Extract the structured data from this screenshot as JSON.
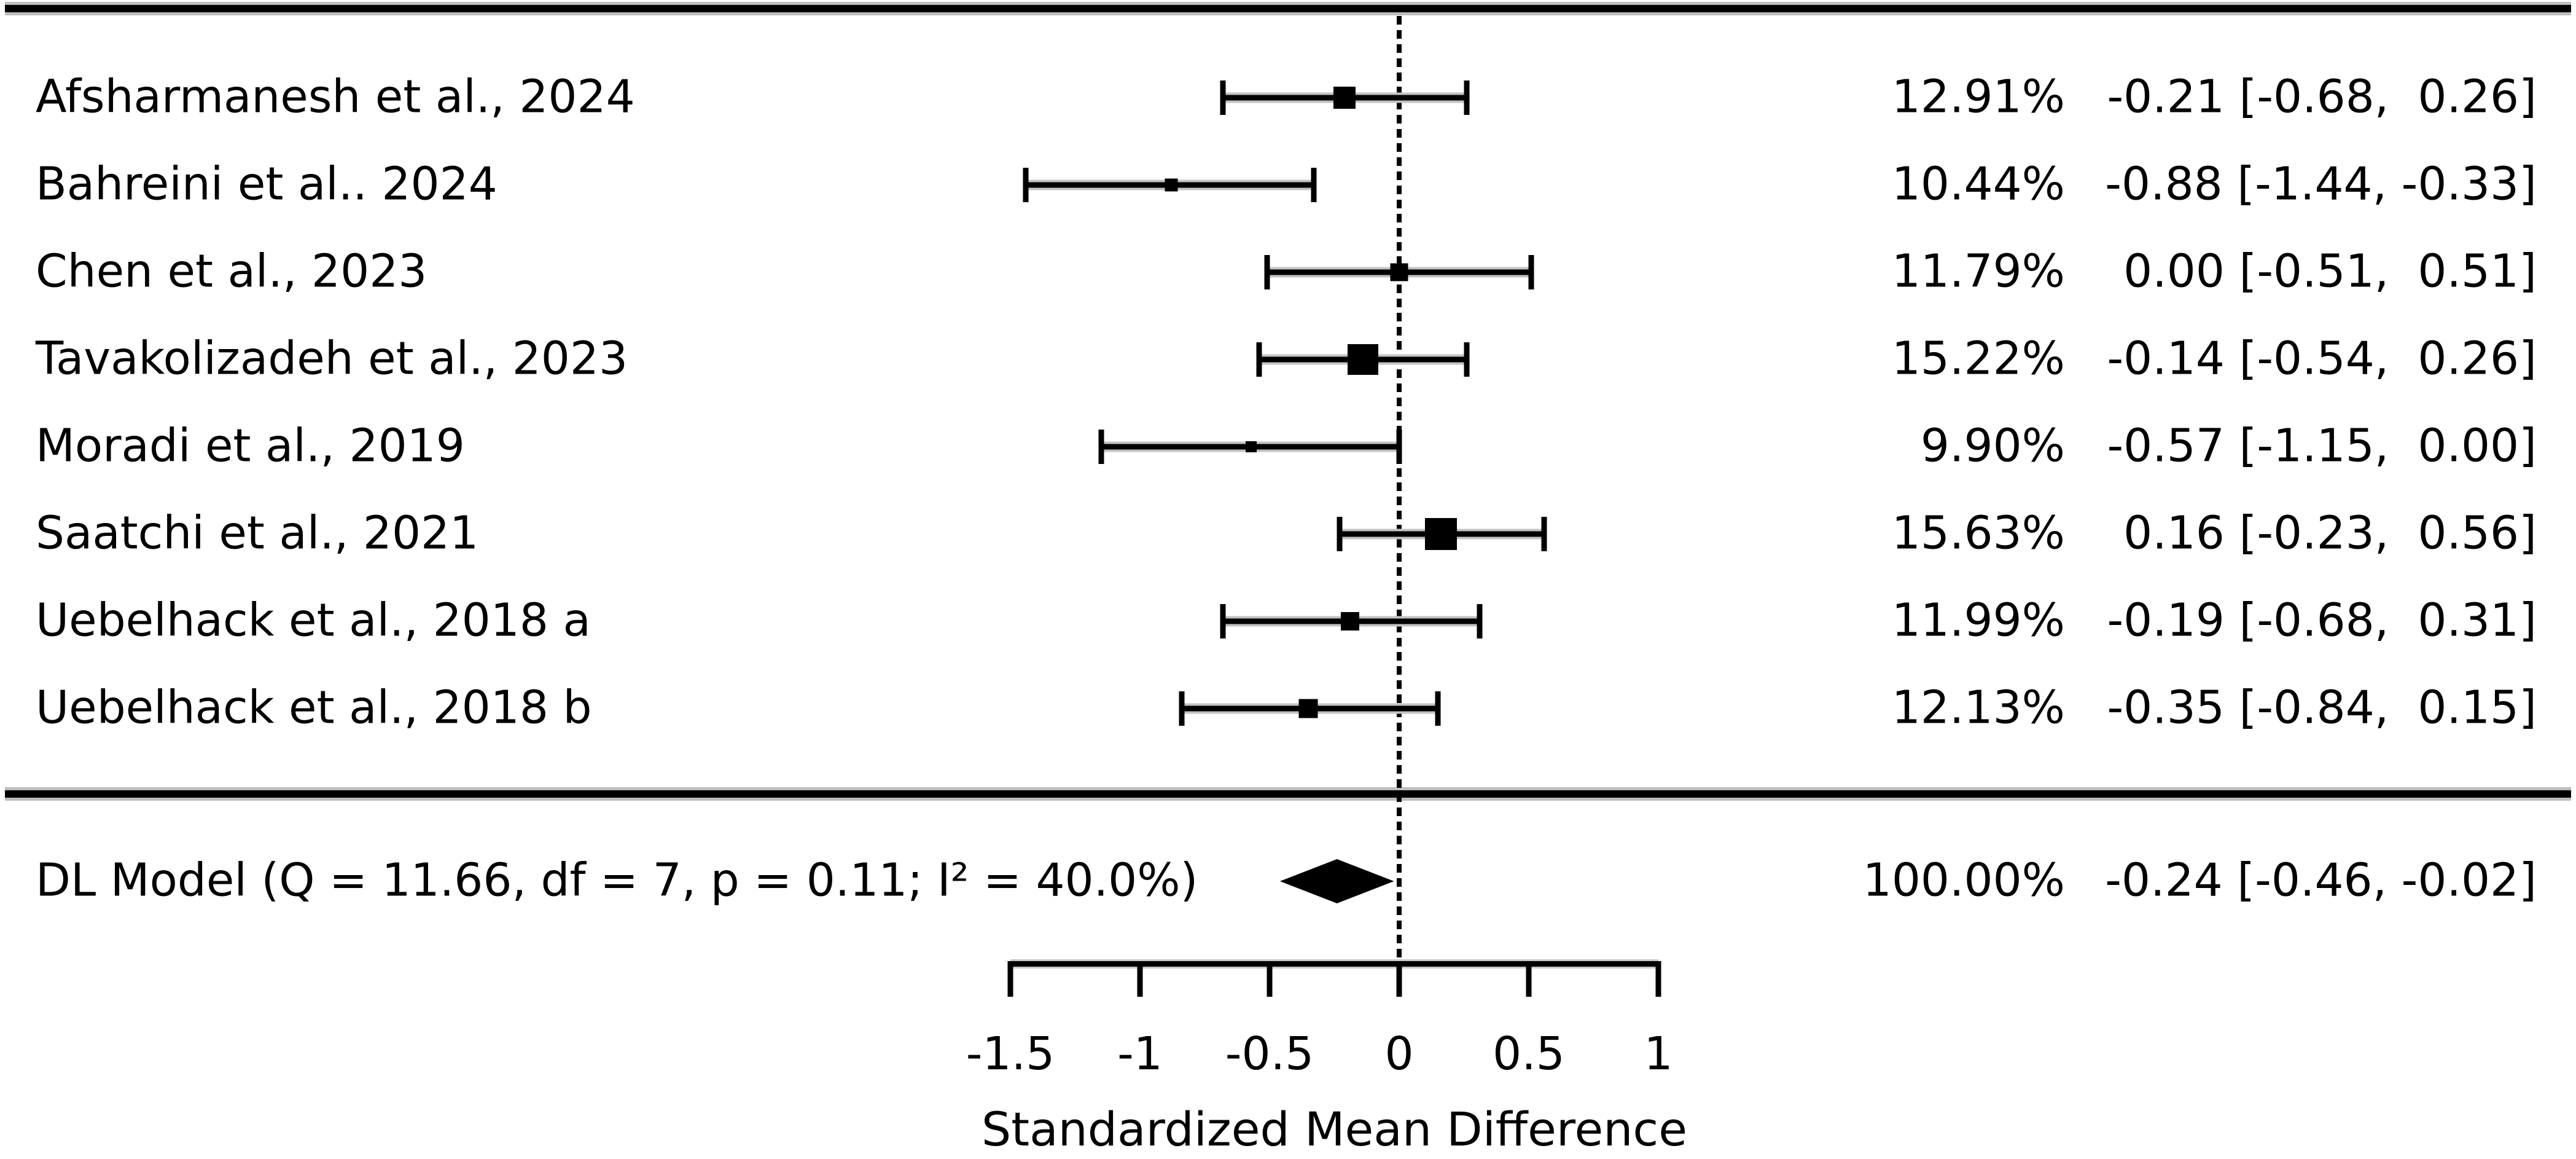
{
  "chart_data": {
    "type": "forest",
    "title": "",
    "xlabel": "Standardized Mean Difference",
    "x_axis": {
      "range": [
        -1.5,
        1
      ],
      "ticks": [
        {
          "label": "-1.5",
          "value": -1.5
        },
        {
          "label": "-1",
          "value": -1
        },
        {
          "label": "-0.5",
          "value": -0.5
        },
        {
          "label": "0",
          "value": 0
        },
        {
          "label": "0.5",
          "value": 0.5
        },
        {
          "label": "1",
          "value": 1
        }
      ],
      "zero_reference": 0,
      "grid": false
    },
    "studies": [
      {
        "label": "Afsharmanesh et al., 2024",
        "weight_pct": 12.91,
        "estimate": -0.21,
        "ci_low": -0.68,
        "ci_high": 0.26,
        "weight_text": "12.91%",
        "effect_text": "-0.21 [-0.68,  0.26]"
      },
      {
        "label": "Bahreini et al.. 2024",
        "weight_pct": 10.44,
        "estimate": -0.88,
        "ci_low": -1.44,
        "ci_high": -0.33,
        "weight_text": "10.44%",
        "effect_text": "-0.88 [-1.44, -0.33]"
      },
      {
        "label": "Chen et al., 2023",
        "weight_pct": 11.79,
        "estimate": 0.0,
        "ci_low": -0.51,
        "ci_high": 0.51,
        "weight_text": "11.79%",
        "effect_text": " 0.00 [-0.51,  0.51]"
      },
      {
        "label": "Tavakolizadeh et al., 2023",
        "weight_pct": 15.22,
        "estimate": -0.14,
        "ci_low": -0.54,
        "ci_high": 0.26,
        "weight_text": "15.22%",
        "effect_text": "-0.14 [-0.54,  0.26]"
      },
      {
        "label": "Moradi et al., 2019",
        "weight_pct": 9.9,
        "estimate": -0.57,
        "ci_low": -1.15,
        "ci_high": 0.0,
        "weight_text": "9.90%",
        "effect_text": "-0.57 [-1.15,  0.00]"
      },
      {
        "label": "Saatchi et al., 2021",
        "weight_pct": 15.63,
        "estimate": 0.16,
        "ci_low": -0.23,
        "ci_high": 0.56,
        "weight_text": "15.63%",
        "effect_text": " 0.16 [-0.23,  0.56]"
      },
      {
        "label": "Uebelhack et al., 2018 a",
        "weight_pct": 11.99,
        "estimate": -0.19,
        "ci_low": -0.68,
        "ci_high": 0.31,
        "weight_text": "11.99%",
        "effect_text": "-0.19 [-0.68,  0.31]"
      },
      {
        "label": "Uebelhack et al., 2018 b",
        "weight_pct": 12.13,
        "estimate": -0.35,
        "ci_low": -0.84,
        "ci_high": 0.15,
        "weight_text": "12.13%",
        "effect_text": "-0.35 [-0.84,  0.15]"
      }
    ],
    "summary": {
      "label": "DL Model (Q = 11.66, df = 7, p = 0.11; I² = 40.0%)",
      "weight_pct": 100.0,
      "estimate": -0.24,
      "ci_low": -0.46,
      "ci_high": -0.02,
      "weight_text": "100.00%",
      "effect_text": "-0.24 [-0.46, -0.02]"
    },
    "legend": null
  }
}
